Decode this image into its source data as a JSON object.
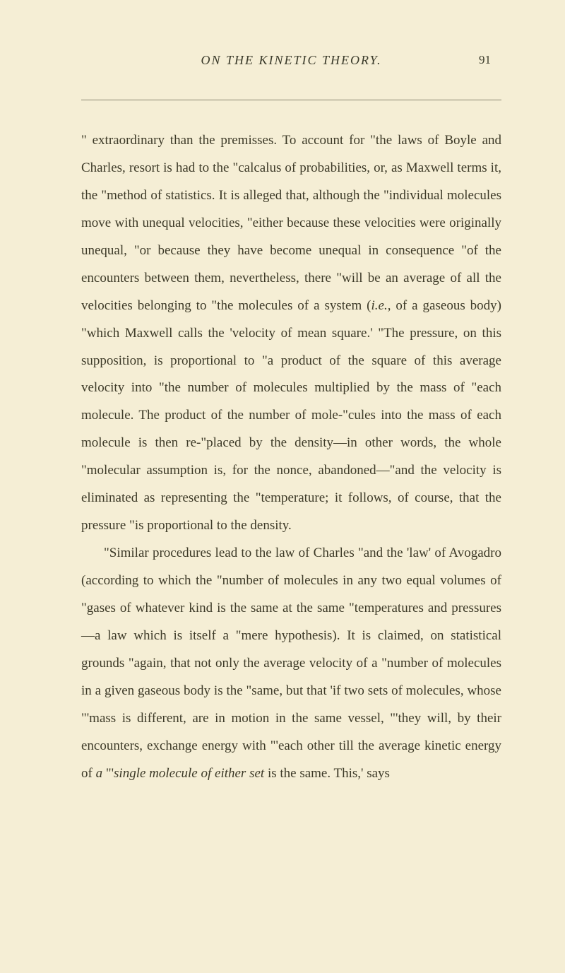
{
  "header": {
    "running_title": "ON THE KINETIC THEORY.",
    "page_number": "91"
  },
  "paragraphs": {
    "p1": "\" extraordinary than the premisses. To account for \"the laws of Boyle and Charles, resort is had to the \"calcalus of probabilities, or, as Maxwell terms it, the \"method of statistics. It is alleged that, although the \"individual molecules move with unequal velocities, \"either because these velocities were originally unequal, \"or because they have become unequal in consequence \"of the encounters between them, nevertheless, there \"will be an average of all the velocities belonging to \"the molecules of a system (",
    "p1_italic": "i.e.",
    "p1_cont": ", of a gaseous body) \"which Maxwell calls the 'velocity of mean square.' \"The pressure, on this supposition, is proportional to \"a product of the square of this average velocity into \"the number of molecules multiplied by the mass of \"each molecule. The product of the number of mole-\"cules into the mass of each molecule is then re-\"placed by the density—in other words, the whole \"molecular assumption is, for the nonce, abandoned—\"and the velocity is eliminated as representing the \"temperature; it follows, of course, that the pressure \"is proportional to the density.",
    "p2": "\"Similar procedures lead to the law of Charles \"and the 'law' of Avogadro (according to which the \"number of molecules in any two equal volumes of \"gases of whatever kind is the same at the same \"temperatures and pressures—a law which is itself a \"mere hypothesis). It is claimed, on statistical grounds \"again, that not only the average velocity of a \"number of molecules in a given gaseous body is the \"same, but that 'if two sets of molecules, whose \"'mass is different, are in motion in the same vessel, \"'they will, by their encounters, exchange energy with \"'each other till the average kinetic energy of ",
    "p2_italic1": "a",
    "p2_mid": " \"'",
    "p2_italic2": "single molecule of either set",
    "p2_end": " is the same. This,' says"
  },
  "colors": {
    "background": "#f5eed5",
    "text": "#3d3a28",
    "divider": "#8a8570"
  },
  "typography": {
    "body_fontsize": 19,
    "header_fontsize": 18,
    "line_height": 2.05
  }
}
